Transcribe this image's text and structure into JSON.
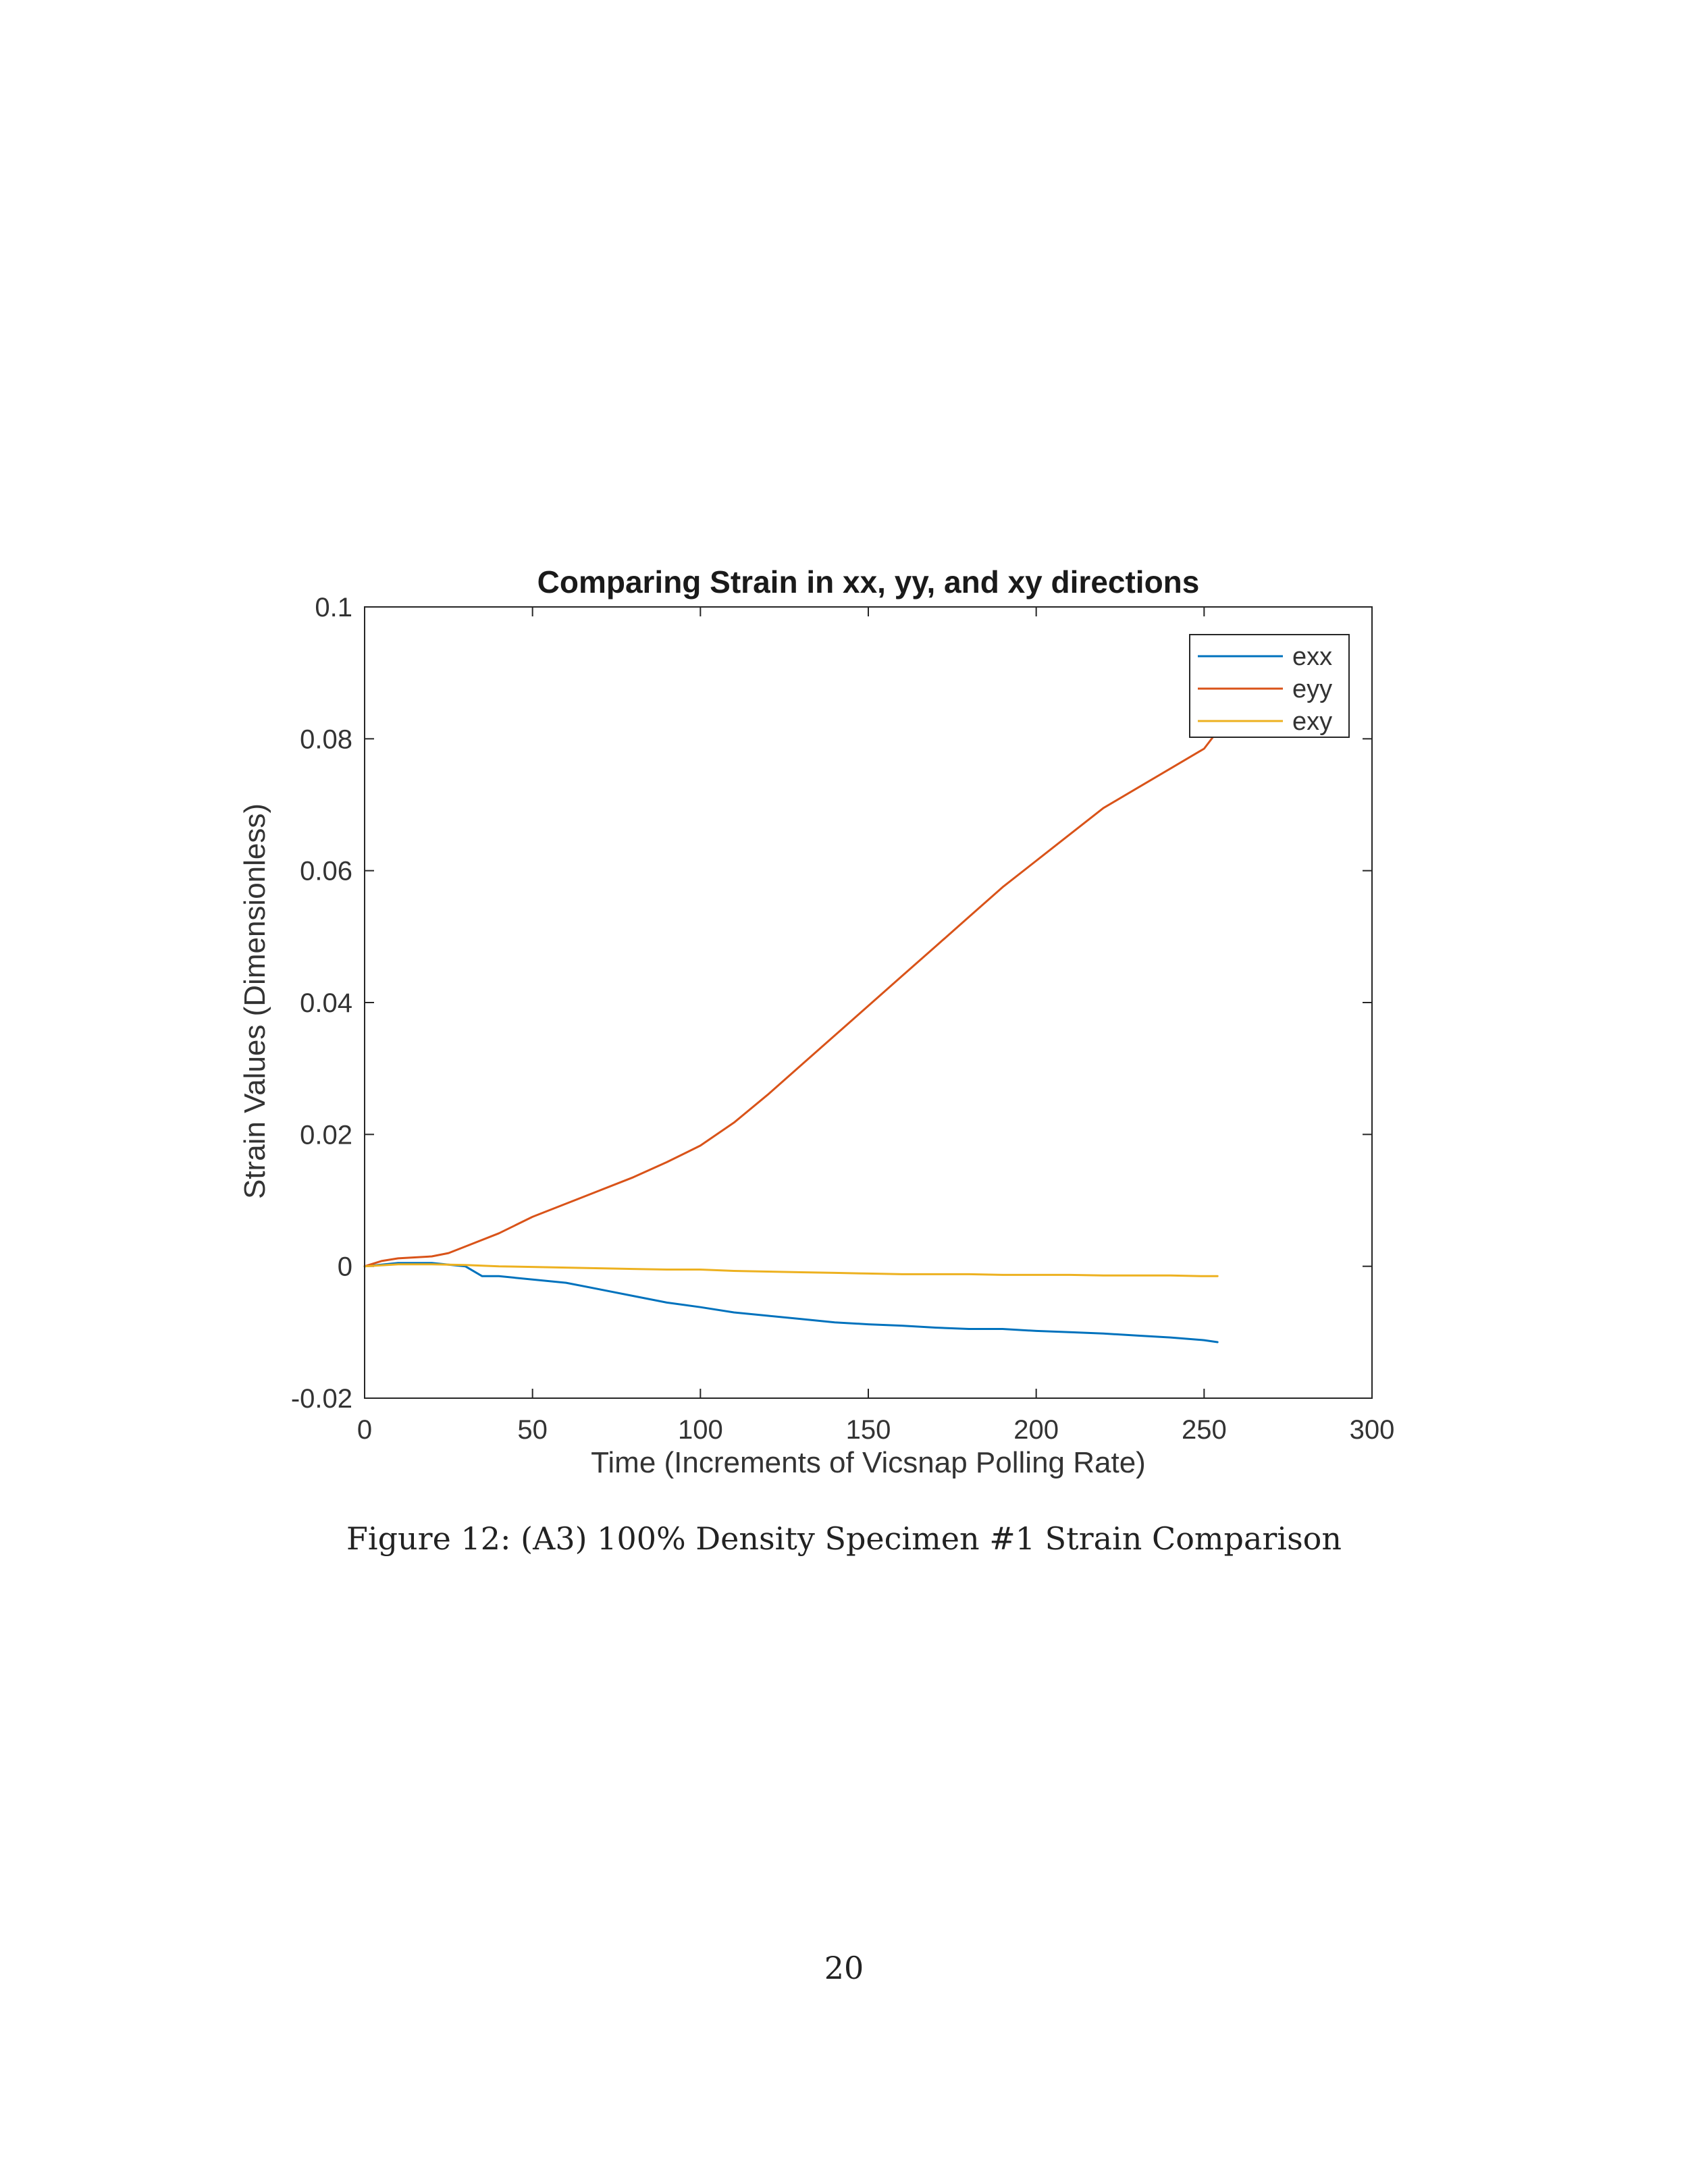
{
  "chart_data": {
    "type": "line",
    "title": "Comparing Strain in xx, yy, and xy directions",
    "xlabel": "Time (Increments of Vicsnap Polling Rate)",
    "ylabel": "Strain Values (Dimensionless)",
    "xlim": [
      0,
      300
    ],
    "ylim": [
      -0.02,
      0.1
    ],
    "xticks": [
      0,
      50,
      100,
      150,
      200,
      250,
      300
    ],
    "yticks": [
      -0.02,
      0,
      0.02,
      0.04,
      0.06,
      0.08,
      0.1
    ],
    "xtick_labels": [
      "0",
      "50",
      "100",
      "150",
      "200",
      "250",
      "300"
    ],
    "ytick_labels": [
      "-0.02",
      "0",
      "0.02",
      "0.04",
      "0.06",
      "0.08",
      "0.1"
    ],
    "grid": false,
    "legend_position": "top-right",
    "series": [
      {
        "name": "exx",
        "color": "#0072BD",
        "x": [
          0,
          10,
          20,
          30,
          35,
          40,
          50,
          60,
          70,
          80,
          90,
          100,
          110,
          120,
          130,
          140,
          150,
          160,
          170,
          180,
          190,
          200,
          210,
          220,
          230,
          240,
          250,
          254
        ],
        "y": [
          0.0,
          0.0005,
          0.0005,
          0.0,
          -0.0015,
          -0.0015,
          -0.002,
          -0.0025,
          -0.0035,
          -0.0045,
          -0.0055,
          -0.0062,
          -0.007,
          -0.0075,
          -0.008,
          -0.0085,
          -0.0088,
          -0.009,
          -0.0093,
          -0.0095,
          -0.0095,
          -0.0098,
          -0.01,
          -0.0102,
          -0.0105,
          -0.0108,
          -0.0112,
          -0.0115
        ]
      },
      {
        "name": "eyy",
        "color": "#D95319",
        "x": [
          0,
          5,
          10,
          20,
          25,
          30,
          40,
          50,
          60,
          70,
          80,
          90,
          100,
          110,
          120,
          130,
          140,
          150,
          160,
          170,
          180,
          190,
          200,
          210,
          220,
          230,
          240,
          250,
          253,
          254
        ],
        "y": [
          0.0,
          0.0008,
          0.0012,
          0.0015,
          0.002,
          0.003,
          0.005,
          0.0075,
          0.0095,
          0.0115,
          0.0135,
          0.0158,
          0.0183,
          0.0218,
          0.026,
          0.0305,
          0.035,
          0.0395,
          0.044,
          0.0485,
          0.053,
          0.0575,
          0.0615,
          0.0655,
          0.0695,
          0.0725,
          0.0755,
          0.0785,
          0.0805,
          0.081
        ]
      },
      {
        "name": "exy",
        "color": "#EDB120",
        "x": [
          0,
          10,
          20,
          30,
          40,
          50,
          60,
          70,
          80,
          90,
          100,
          110,
          120,
          130,
          140,
          150,
          160,
          170,
          180,
          190,
          200,
          210,
          220,
          230,
          240,
          250,
          254
        ],
        "y": [
          0.0,
          0.0003,
          0.0003,
          0.0002,
          0.0,
          -0.0001,
          -0.0002,
          -0.0003,
          -0.0004,
          -0.0005,
          -0.0005,
          -0.0007,
          -0.0008,
          -0.0009,
          -0.001,
          -0.0011,
          -0.0012,
          -0.0012,
          -0.0012,
          -0.0013,
          -0.0013,
          -0.0013,
          -0.0014,
          -0.0014,
          -0.0014,
          -0.0015,
          -0.0015
        ]
      }
    ]
  },
  "figure": {
    "caption": "Figure 12: (A3) 100% Density Specimen #1 Strain Comparison"
  },
  "page": {
    "number": "20"
  }
}
